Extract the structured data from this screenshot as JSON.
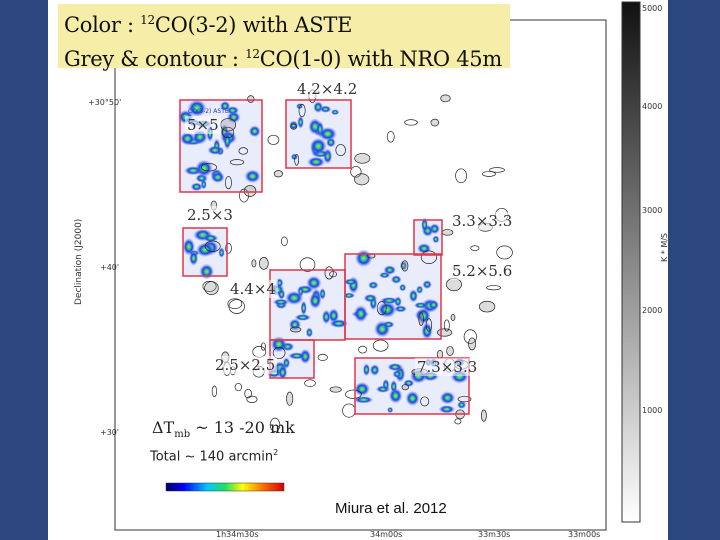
{
  "title": {
    "line1_prefix": "Color : ",
    "line1_sup": "12",
    "line1_suffix": "CO(3-2) with ASTE",
    "line2_prefix": "Grey & contour : ",
    "line2_sup": "12",
    "line2_suffix": "CO(1-0) with NRO 45m"
  },
  "regions": [
    {
      "label": "4.2×4.2"
    },
    {
      "label": "5×5"
    },
    {
      "label": "2.5×3"
    },
    {
      "label": "3.3×3.3"
    },
    {
      "label": "5.2×5.6"
    },
    {
      "label": "4.4×4"
    },
    {
      "label": "2.5×2.5"
    },
    {
      "label": "7.3×3.3"
    }
  ],
  "noise": {
    "prefix": "ΔT",
    "sub": "mb",
    "suffix": " ~ 13 -20 mk"
  },
  "total": {
    "prefix": "Total ~ 140 arcmin",
    "sup": "2"
  },
  "credit": "Miura et al. 2012",
  "axes": {
    "ylabel": "Declination (J2000)",
    "dec_ticks": [
      "+30°50'",
      "+40'",
      "+30'"
    ],
    "ra_ticks": [
      "1h34m30s",
      "34m00s",
      "33m30s",
      "33m00s"
    ],
    "colorbar_label": "K * M/S",
    "colorbar_ticks": [
      "5000",
      "4000",
      "3000",
      "2000",
      "1000"
    ],
    "inset_label": "CO(3-2) ASTE"
  },
  "colors": {
    "background": "#2e4a84",
    "title_box": "#f5eda8",
    "region_box": "#e0364a"
  }
}
